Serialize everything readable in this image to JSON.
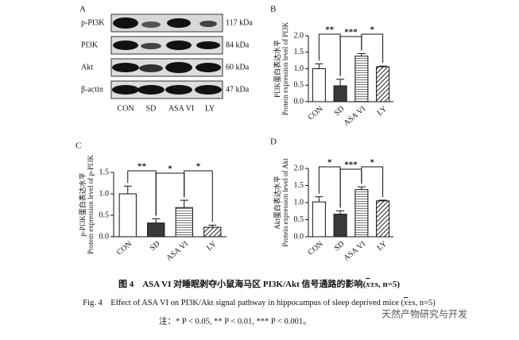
{
  "panel_a": {
    "label": "A",
    "rows": [
      {
        "name": "p-PI3K",
        "size": "117 kDa"
      },
      {
        "name": "PI3K",
        "size": "84 kDa"
      },
      {
        "name": "Akt",
        "size": "60 kDa"
      },
      {
        "name": "β-actin",
        "size": "47 kDa"
      }
    ],
    "lanes": [
      "CON",
      "SD",
      "ASA VI",
      "LY"
    ]
  },
  "chart_data": [
    {
      "type": "bar",
      "panel": "B",
      "ylabel_cn": "PI3K蛋白表达水平",
      "ylabel": "Protein expression level of PI3K",
      "categories": [
        "CON",
        "SD",
        "ASA VI",
        "LY"
      ],
      "values": [
        1.0,
        0.48,
        1.38,
        1.06
      ],
      "errors": [
        0.15,
        0.2,
        0.08,
        0.02
      ],
      "colors": [
        "#ffffff",
        "#3a3a3a",
        "url(#lines)",
        "url(#hatch)"
      ],
      "ylim": [
        0,
        2
      ],
      "yticks": [
        {
          "value": 0,
          "label": "0.0"
        },
        0.5,
        {
          "value": 1,
          "label": "1.0"
        },
        1.5,
        {
          "value": 2,
          "label": "2.0"
        }
      ],
      "significance": [
        {
          "label": "**",
          "between": [
            "CON",
            "SD"
          ]
        },
        {
          "label": "***",
          "between": [
            "SD",
            "ASA VI"
          ]
        },
        {
          "label": "*",
          "between": [
            "ASA VI",
            "LY"
          ]
        }
      ]
    },
    {
      "type": "bar",
      "panel": "C",
      "ylabel_cn": "p-PI3K蛋白表达水平",
      "ylabel": "Protein expression level of p-PI3K",
      "categories": [
        "CON",
        "SD",
        "ASA VI",
        "LY"
      ],
      "values": [
        1.0,
        0.32,
        0.68,
        0.22
      ],
      "errors": [
        0.18,
        0.1,
        0.17,
        0.05
      ],
      "colors": [
        "#ffffff",
        "#3a3a3a",
        "url(#lines)",
        "url(#hatch)"
      ],
      "ylim": [
        0,
        1.5
      ],
      "yticks": [
        {
          "value": 0,
          "label": "0.0"
        },
        0.5,
        {
          "value": 1,
          "label": "1.0"
        },
        1.5
      ],
      "significance": [
        {
          "label": "**",
          "between": [
            "CON",
            "SD"
          ]
        },
        {
          "label": "*",
          "between": [
            "SD",
            "ASA VI"
          ]
        },
        {
          "label": "*",
          "between": [
            "ASA VI",
            "LY"
          ]
        }
      ]
    },
    {
      "type": "bar",
      "panel": "D",
      "ylabel_cn": "Akt蛋白表达水平",
      "ylabel": "Protein expression level of Akt",
      "categories": [
        "CON",
        "SD",
        "ASA VI",
        "LY"
      ],
      "values": [
        1.02,
        0.66,
        1.38,
        1.05
      ],
      "errors": [
        0.15,
        0.1,
        0.08,
        0.02
      ],
      "colors": [
        "#ffffff",
        "#3a3a3a",
        "url(#lines)",
        "url(#hatch)"
      ],
      "ylim": [
        0,
        2
      ],
      "yticks": [
        {
          "value": 0,
          "label": "0.0"
        },
        0.5,
        {
          "value": 1,
          "label": "1.0"
        },
        1.5,
        {
          "value": 2,
          "label": "2.0"
        }
      ],
      "significance": [
        {
          "label": "*",
          "between": [
            "CON",
            "SD"
          ]
        },
        {
          "label": "***",
          "between": [
            "SD",
            "ASA VI"
          ]
        },
        {
          "label": "*",
          "between": [
            "ASA VI",
            "LY"
          ]
        }
      ]
    }
  ],
  "caption": {
    "cn_prefix": "图 4　ASA VI 对睡眠剥夺小鼠海马区 PI3K/Akt 信号通路的影响(",
    "cn_mean": "x",
    "cn_suffix": "±s, n=5)",
    "en_prefix": "Fig. 4　Effect of ASA VI on PI3K/Akt signal pathway in hippocampus of sleep deprived mice (",
    "en_mean": "x",
    "en_suffix": "±s, n=5)",
    "note": "注：* P < 0.05, ** P < 0.01, *** P < 0.001。"
  },
  "watermark": "天然产物研究与开发"
}
